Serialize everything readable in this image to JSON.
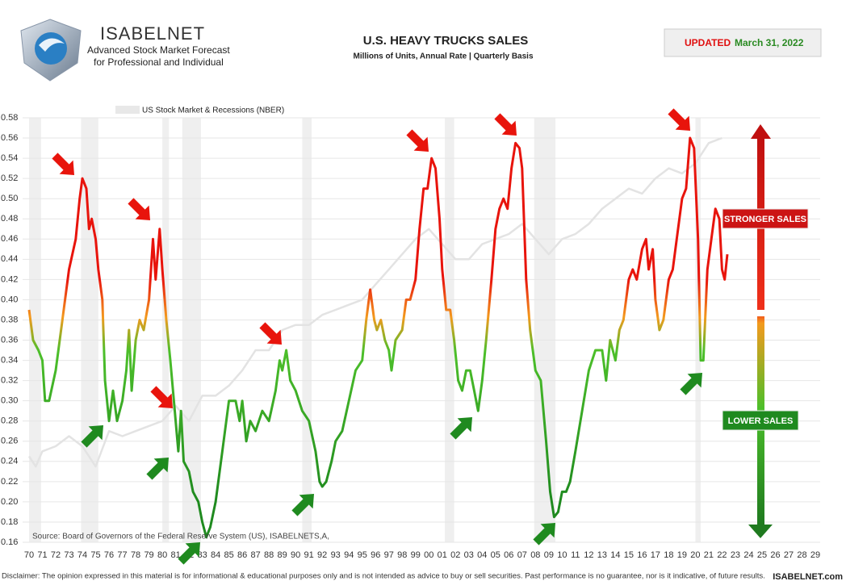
{
  "brand": {
    "name": "ISABELNET",
    "tagline": "Advanced Stock Market Forecast",
    "tagline2": "for Professional and Individual"
  },
  "badge": {
    "label": "UPDATED",
    "date": "March 31, 2022"
  },
  "chart_data": {
    "type": "line",
    "title": "U.S. HEAVY TRUCKS SALES",
    "subtitle": "Millions of Units, Annual Rate | Quarterly Basis",
    "source": "Source: Board of Governors of the Federal Reserve System (US), ISABELNETS,A,",
    "upper_label": "STRONGER SALES",
    "lower_label": "LOWER SALES",
    "xlim": [
      1970,
      2029
    ],
    "ylim": [
      0.16,
      0.58
    ],
    "grid": true,
    "xticks": [
      {
        "value": 1970,
        "label": "70"
      },
      {
        "value": 1971,
        "label": "71"
      },
      {
        "value": 1972,
        "label": "72"
      },
      {
        "value": 1973,
        "label": "73"
      },
      {
        "value": 1974,
        "label": "74"
      },
      {
        "value": 1975,
        "label": "75"
      },
      {
        "value": 1976,
        "label": "76"
      },
      {
        "value": 1977,
        "label": "77"
      },
      {
        "value": 1978,
        "label": "78"
      },
      {
        "value": 1979,
        "label": "79"
      },
      {
        "value": 1980,
        "label": "80"
      },
      {
        "value": 1981,
        "label": "81"
      },
      {
        "value": 1982,
        "label": "82"
      },
      {
        "value": 1983,
        "label": "83"
      },
      {
        "value": 1984,
        "label": "84"
      },
      {
        "value": 1985,
        "label": "85"
      },
      {
        "value": 1986,
        "label": "86"
      },
      {
        "value": 1987,
        "label": "87"
      },
      {
        "value": 1988,
        "label": "88"
      },
      {
        "value": 1989,
        "label": "89"
      },
      {
        "value": 1990,
        "label": "90"
      },
      {
        "value": 1991,
        "label": "91"
      },
      {
        "value": 1992,
        "label": "92"
      },
      {
        "value": 1993,
        "label": "93"
      },
      {
        "value": 1994,
        "label": "94"
      },
      {
        "value": 1995,
        "label": "95"
      },
      {
        "value": 1996,
        "label": "96"
      },
      {
        "value": 1997,
        "label": "97"
      },
      {
        "value": 1998,
        "label": "98"
      },
      {
        "value": 1999,
        "label": "99"
      },
      {
        "value": 2000,
        "label": "00"
      },
      {
        "value": 2001,
        "label": "01"
      },
      {
        "value": 2002,
        "label": "02"
      },
      {
        "value": 2003,
        "label": "03"
      },
      {
        "value": 2004,
        "label": "04"
      },
      {
        "value": 2005,
        "label": "05"
      },
      {
        "value": 2006,
        "label": "06"
      },
      {
        "value": 2007,
        "label": "07"
      },
      {
        "value": 2008,
        "label": "08"
      },
      {
        "value": 2009,
        "label": "09"
      },
      {
        "value": 2010,
        "label": "10"
      },
      {
        "value": 2011,
        "label": "11"
      },
      {
        "value": 2012,
        "label": "12"
      },
      {
        "value": 2013,
        "label": "13"
      },
      {
        "value": 2014,
        "label": "14"
      },
      {
        "value": 2015,
        "label": "15"
      },
      {
        "value": 2016,
        "label": "16"
      },
      {
        "value": 2017,
        "label": "17"
      },
      {
        "value": 2018,
        "label": "18"
      },
      {
        "value": 2019,
        "label": "19"
      },
      {
        "value": 2020,
        "label": "20"
      },
      {
        "value": 2021,
        "label": "21"
      },
      {
        "value": 2022,
        "label": "22"
      },
      {
        "value": 2023,
        "label": "23"
      },
      {
        "value": 2024,
        "label": "24"
      },
      {
        "value": 2025,
        "label": "25"
      },
      {
        "value": 2026,
        "label": "26"
      },
      {
        "value": 2027,
        "label": "27"
      },
      {
        "value": 2028,
        "label": "28"
      },
      {
        "value": 2029,
        "label": "29"
      }
    ],
    "yticks": [
      0.16,
      0.18,
      {
        "value": 0.2,
        "label": "0.20"
      },
      0.22,
      0.24,
      0.26,
      0.28,
      {
        "value": 0.3,
        "label": "0.30"
      },
      0.32,
      0.34,
      0.36,
      0.38,
      {
        "value": 0.4,
        "label": "0.40"
      },
      0.42,
      0.44,
      0.46,
      0.48,
      {
        "value": 0.5,
        "label": "0.50"
      },
      0.52,
      0.54,
      0.56,
      0.58
    ],
    "recessions": [
      [
        1970.0,
        1970.9
      ],
      [
        1973.9,
        1975.2
      ],
      [
        1980.0,
        1980.5
      ],
      [
        1981.5,
        1982.9
      ],
      [
        1990.5,
        1991.2
      ],
      [
        2001.2,
        2001.9
      ],
      [
        2007.9,
        2009.5
      ],
      [
        2020.0,
        2020.4
      ]
    ],
    "series": [
      {
        "name": "US Stock Market & Recessions (NBER)",
        "color": "#e3e3e3",
        "x": [
          1970,
          1970.5,
          1971,
          1972,
          1973,
          1974,
          1975,
          1976,
          1977,
          1978,
          1980,
          1981,
          1982,
          1983,
          1984,
          1985,
          1986,
          1987,
          1988,
          1989,
          1990,
          1991,
          1992,
          1993,
          1994,
          1995,
          1996,
          1997,
          1998,
          1999,
          2000,
          2001,
          2002,
          2003,
          2004,
          2005,
          2006,
          2007,
          2008,
          2009,
          2010,
          2011,
          2012,
          2013,
          2014,
          2015,
          2016,
          2017,
          2018,
          2019,
          2020,
          2021,
          2022
        ],
        "values": [
          0.245,
          0.235,
          0.25,
          0.255,
          0.265,
          0.255,
          0.235,
          0.27,
          0.265,
          0.27,
          0.28,
          0.295,
          0.28,
          0.305,
          0.305,
          0.315,
          0.33,
          0.35,
          0.35,
          0.37,
          0.375,
          0.375,
          0.385,
          0.39,
          0.395,
          0.4,
          0.415,
          0.43,
          0.445,
          0.46,
          0.47,
          0.455,
          0.44,
          0.44,
          0.455,
          0.46,
          0.465,
          0.475,
          0.46,
          0.445,
          0.46,
          0.465,
          0.475,
          0.49,
          0.5,
          0.51,
          0.505,
          0.52,
          0.53,
          0.525,
          0.535,
          0.555,
          0.56
        ]
      },
      {
        "color": [
          "#1f8a1f",
          "#4cbf2a",
          "#f39a1e",
          "#e8140c"
        ],
        "x": [
          1970.0,
          1970.3,
          1970.7,
          1971.0,
          1971.2,
          1971.5,
          1972.0,
          1972.5,
          1973.0,
          1973.5,
          1973.8,
          1974.0,
          1974.3,
          1974.5,
          1974.7,
          1975.0,
          1975.2,
          1975.5,
          1975.7,
          1976.0,
          1976.3,
          1976.6,
          1977.0,
          1977.3,
          1977.5,
          1977.7,
          1978.0,
          1978.3,
          1978.6,
          1979.0,
          1979.3,
          1979.5,
          1979.8,
          1980.0,
          1980.3,
          1980.6,
          1980.8,
          1981.0,
          1981.2,
          1981.4,
          1981.6,
          1982.0,
          1982.3,
          1982.7,
          1983.0,
          1983.3,
          1983.6,
          1984.0,
          1984.5,
          1985.0,
          1985.5,
          1985.8,
          1986.0,
          1986.3,
          1986.6,
          1987.0,
          1987.5,
          1988.0,
          1988.5,
          1988.8,
          1989.0,
          1989.3,
          1989.6,
          1990.0,
          1990.5,
          1991.0,
          1991.5,
          1991.8,
          1992.0,
          1992.3,
          1992.7,
          1993.0,
          1993.5,
          1994.0,
          1994.5,
          1995.0,
          1995.3,
          1995.6,
          1995.9,
          1996.1,
          1996.4,
          1996.7,
          1997.0,
          1997.2,
          1997.5,
          1998.0,
          1998.3,
          1998.6,
          1999.0,
          1999.3,
          1999.6,
          1999.9,
          2000.2,
          2000.5,
          2000.8,
          2001.0,
          2001.3,
          2001.6,
          2001.9,
          2002.2,
          2002.5,
          2002.8,
          2003.1,
          2003.4,
          2003.7,
          2004.0,
          2004.3,
          2004.7,
          2005.0,
          2005.3,
          2005.6,
          2005.9,
          2006.2,
          2006.5,
          2006.8,
          2007.0,
          2007.3,
          2007.6,
          2008.0,
          2008.4,
          2008.8,
          2009.1,
          2009.4,
          2009.7,
          2010.0,
          2010.3,
          2010.6,
          2011.0,
          2011.5,
          2012.0,
          2012.5,
          2013.0,
          2013.3,
          2013.6,
          2014.0,
          2014.3,
          2014.6,
          2015.0,
          2015.3,
          2015.6,
          2016.0,
          2016.3,
          2016.5,
          2016.8,
          2017.0,
          2017.3,
          2017.6,
          2018.0,
          2018.3,
          2018.6,
          2019.0,
          2019.3,
          2019.6,
          2019.9,
          2020.2,
          2020.4,
          2020.6,
          2020.9,
          2021.2,
          2021.5,
          2021.8,
          2022.0,
          2022.2,
          2022.4
        ],
        "values": [
          0.39,
          0.36,
          0.35,
          0.34,
          0.3,
          0.3,
          0.33,
          0.38,
          0.43,
          0.46,
          0.5,
          0.52,
          0.51,
          0.47,
          0.48,
          0.46,
          0.43,
          0.4,
          0.32,
          0.28,
          0.31,
          0.28,
          0.3,
          0.33,
          0.37,
          0.31,
          0.36,
          0.38,
          0.37,
          0.4,
          0.46,
          0.42,
          0.47,
          0.43,
          0.38,
          0.34,
          0.31,
          0.28,
          0.25,
          0.29,
          0.24,
          0.23,
          0.21,
          0.2,
          0.18,
          0.165,
          0.175,
          0.2,
          0.25,
          0.3,
          0.3,
          0.28,
          0.3,
          0.26,
          0.28,
          0.27,
          0.29,
          0.28,
          0.31,
          0.34,
          0.33,
          0.35,
          0.32,
          0.31,
          0.29,
          0.28,
          0.25,
          0.22,
          0.215,
          0.22,
          0.24,
          0.26,
          0.27,
          0.3,
          0.33,
          0.34,
          0.38,
          0.41,
          0.38,
          0.37,
          0.38,
          0.36,
          0.35,
          0.33,
          0.36,
          0.37,
          0.4,
          0.4,
          0.42,
          0.47,
          0.51,
          0.51,
          0.54,
          0.53,
          0.48,
          0.43,
          0.39,
          0.39,
          0.36,
          0.32,
          0.31,
          0.33,
          0.33,
          0.31,
          0.29,
          0.32,
          0.36,
          0.42,
          0.47,
          0.49,
          0.5,
          0.49,
          0.53,
          0.555,
          0.55,
          0.53,
          0.42,
          0.37,
          0.33,
          0.32,
          0.26,
          0.21,
          0.185,
          0.19,
          0.21,
          0.21,
          0.22,
          0.25,
          0.29,
          0.33,
          0.35,
          0.35,
          0.32,
          0.36,
          0.34,
          0.37,
          0.38,
          0.42,
          0.43,
          0.42,
          0.45,
          0.46,
          0.43,
          0.45,
          0.4,
          0.37,
          0.38,
          0.42,
          0.43,
          0.46,
          0.5,
          0.51,
          0.56,
          0.55,
          0.46,
          0.34,
          0.34,
          0.43,
          0.46,
          0.49,
          0.48,
          0.43,
          0.42,
          0.445
        ]
      }
    ]
  },
  "disclaimer": "Disclaimer: The opinion expressed in this material is for informational & educational purposes only and is not intended as advice to buy or sell securities. Past performance is no guarantee, nor is it indicative, of future results.",
  "footer_brand": "ISABELNET.com"
}
